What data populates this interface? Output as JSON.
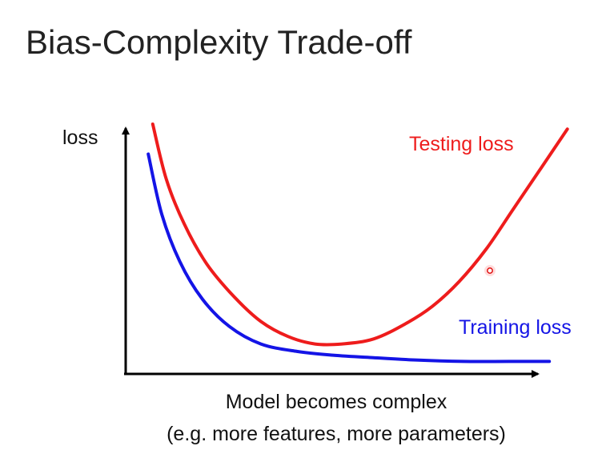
{
  "title": "Bias-Complexity Trade-off",
  "chart_data": {
    "type": "line",
    "ylabel": "loss",
    "xlabel_lines": [
      "Model becomes complex",
      "(e.g. more features, more parameters)"
    ],
    "grid": false,
    "legend": "inline labels next to curves",
    "series": [
      {
        "name": "Testing loss",
        "color": "#ee1c1c",
        "x": [
          0.06,
          0.09,
          0.13,
          0.18,
          0.24,
          0.3,
          0.36,
          0.42,
          0.48,
          0.55,
          0.62,
          0.68,
          0.74,
          0.8,
          0.86,
          0.92,
          0.98
        ],
        "y": [
          1.0,
          0.78,
          0.6,
          0.44,
          0.31,
          0.21,
          0.15,
          0.12,
          0.12,
          0.14,
          0.2,
          0.27,
          0.37,
          0.5,
          0.66,
          0.82,
          0.98
        ]
      },
      {
        "name": "Training loss",
        "color": "#1414e6",
        "x": [
          0.05,
          0.08,
          0.12,
          0.17,
          0.23,
          0.3,
          0.38,
          0.46,
          0.55,
          0.65,
          0.75,
          0.85,
          0.94
        ],
        "y": [
          0.88,
          0.64,
          0.45,
          0.3,
          0.19,
          0.12,
          0.09,
          0.075,
          0.065,
          0.055,
          0.05,
          0.05,
          0.05
        ]
      }
    ]
  }
}
